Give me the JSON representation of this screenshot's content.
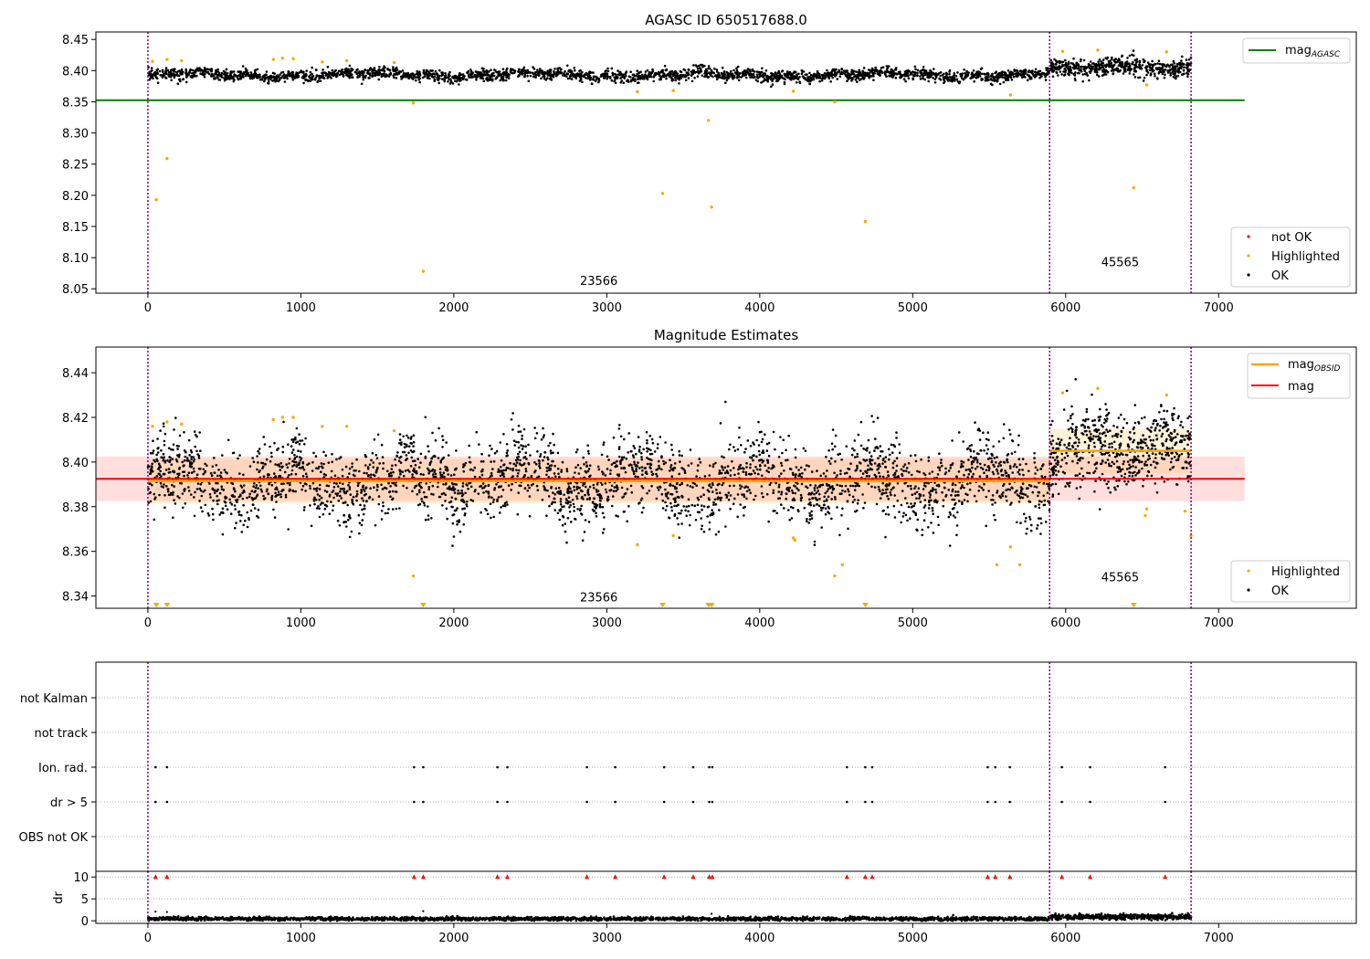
{
  "chart_data": [
    {
      "type": "scatter",
      "title": "AGASC ID 650517688.0",
      "xlim": [
        -340,
        7900
      ],
      "ylim": [
        8.043,
        8.462
      ],
      "x_ticks": [
        0,
        1000,
        2000,
        3000,
        4000,
        5000,
        6000,
        7000
      ],
      "y_ticks": [
        8.05,
        8.1,
        8.15,
        8.2,
        8.25,
        8.3,
        8.35,
        8.4,
        8.45
      ],
      "y_tick_labels": [
        "8.05",
        "8.10",
        "8.15",
        "8.20",
        "8.25",
        "8.30",
        "8.35",
        "8.40",
        "8.45"
      ],
      "obs_boundaries": [
        0,
        5895,
        6820
      ],
      "annotations": [
        {
          "text": "23566",
          "x": 2948,
          "y": 8.056
        },
        {
          "text": "45565",
          "x": 6356,
          "y": 8.086
        }
      ],
      "hlines": [
        {
          "name": "magAGASC",
          "y": 8.3525,
          "x_end": 7170,
          "color": "#008000"
        }
      ],
      "series": [
        {
          "name": "not OK",
          "color": "#ff0000",
          "points": []
        },
        {
          "name": "Highlighted",
          "color": "#ffa500",
          "points": [
            [
              55,
              8.193
            ],
            [
              125,
              8.259
            ],
            [
              1735,
              8.348
            ],
            [
              1800,
              8.078
            ],
            [
              3200,
              8.366
            ],
            [
              3365,
              8.203
            ],
            [
              3435,
              8.368
            ],
            [
              3665,
              8.32
            ],
            [
              3685,
              8.181
            ],
            [
              4220,
              8.367
            ],
            [
              4490,
              8.35
            ],
            [
              4690,
              8.158
            ],
            [
              6445,
              8.212
            ],
            [
              6530,
              8.377
            ],
            [
              5640,
              8.361
            ],
            [
              30,
              8.415
            ],
            [
              125,
              8.418
            ],
            [
              220,
              8.416
            ],
            [
              820,
              8.418
            ],
            [
              880,
              8.42
            ],
            [
              950,
              8.419
            ],
            [
              1140,
              8.414
            ],
            [
              1300,
              8.416
            ],
            [
              1610,
              8.413
            ],
            [
              5980,
              8.431
            ],
            [
              6210,
              8.433
            ],
            [
              6660,
              8.43
            ]
          ]
        },
        {
          "name": "OK",
          "color": "#000000",
          "segments": [
            {
              "x0": 0,
              "x1": 5895,
              "mean": 8.393,
              "sigma": 0.0045,
              "n": 2600
            },
            {
              "x0": 5895,
              "x1": 6820,
              "mean": 8.405,
              "sigma": 0.007,
              "n": 520
            }
          ]
        }
      ],
      "legend": [
        "magAGASC",
        "not OK",
        "Highlighted",
        "OK"
      ],
      "legend_labels": {
        "mag_main": "mag",
        "mag_sub": "AGASC",
        "not_ok": "not OK",
        "highlighted": "Highlighted",
        "ok": "OK"
      }
    },
    {
      "type": "scatter",
      "title": "Magnitude Estimates",
      "xlim": [
        -340,
        7900
      ],
      "ylim": [
        8.3345,
        8.4515
      ],
      "x_ticks": [
        0,
        1000,
        2000,
        3000,
        4000,
        5000,
        6000,
        7000
      ],
      "y_ticks": [
        8.34,
        8.36,
        8.38,
        8.4,
        8.42,
        8.44
      ],
      "y_tick_labels": [
        "8.34",
        "8.36",
        "8.38",
        "8.40",
        "8.42",
        "8.44"
      ],
      "obs_boundaries": [
        0,
        5895,
        6820
      ],
      "annotations": [
        {
          "text": "23566",
          "x": 2948,
          "y": 8.3375
        },
        {
          "text": "45565",
          "x": 6356,
          "y": 8.3465
        }
      ],
      "mag": {
        "y": 8.3925,
        "band": [
          8.3825,
          8.4025
        ],
        "x_end": 7170,
        "color": "#ff0000"
      },
      "mag_obsid": [
        {
          "x0": 0,
          "x1": 5895,
          "y": 8.3915,
          "band": [
            8.3815,
            8.4015
          ]
        },
        {
          "x0": 5895,
          "x1": 6820,
          "y": 8.405,
          "band": [
            8.395,
            8.415
          ]
        }
      ],
      "series": [
        {
          "name": "Highlighted",
          "color": "#ffa500",
          "points": [
            [
              30,
              8.416
            ],
            [
              125,
              8.418
            ],
            [
              220,
              8.417
            ],
            [
              820,
              8.419
            ],
            [
              880,
              8.42
            ],
            [
              950,
              8.42
            ],
            [
              1140,
              8.416
            ],
            [
              1300,
              8.416
            ],
            [
              1610,
              8.414
            ],
            [
              1735,
              8.349
            ],
            [
              3200,
              8.363
            ],
            [
              3435,
              8.367
            ],
            [
              4220,
              8.366
            ],
            [
              4230,
              8.365
            ],
            [
              4490,
              8.349
            ],
            [
              4540,
              8.354
            ],
            [
              5550,
              8.354
            ],
            [
              5640,
              8.362
            ],
            [
              5700,
              8.354
            ],
            [
              5980,
              8.431
            ],
            [
              6210,
              8.433
            ],
            [
              6530,
              8.379
            ],
            [
              6520,
              8.376
            ],
            [
              6660,
              8.43
            ],
            [
              6780,
              8.378
            ],
            [
              6820,
              8.367
            ]
          ]
        },
        {
          "name": "Highlighted (below range)",
          "color": "#ffa500",
          "markers": "triangle-down",
          "x": [
            55,
            125,
            1800,
            3365,
            3665,
            3685,
            4690,
            6445
          ]
        },
        {
          "name": "OK",
          "color": "#000000",
          "segments": [
            {
              "x0": 0,
              "x1": 5895,
              "mean": 8.3915,
              "sigma": 0.0085,
              "n": 3000
            },
            {
              "x0": 5895,
              "x1": 6820,
              "mean": 8.405,
              "sigma": 0.0085,
              "n": 600
            }
          ]
        }
      ],
      "legend": [
        "magOBSID",
        "mag",
        "Highlighted",
        "OK"
      ],
      "legend_labels": {
        "obsid_main": "mag",
        "obsid_sub": "OBSID",
        "mag": "mag",
        "highlighted": "Highlighted",
        "ok": "OK"
      }
    },
    {
      "type": "scatter",
      "title": "",
      "xlim": [
        -340,
        7900
      ],
      "categories": [
        "not Kalman",
        "not track",
        "Ion. rad.",
        "dr > 5",
        "OBS not OK"
      ],
      "obs_boundaries": [
        0,
        5895,
        6820
      ],
      "flag_x": [
        50,
        125,
        1740,
        1800,
        2285,
        2350,
        2870,
        3055,
        3375,
        3565,
        3670,
        3690,
        4570,
        4690,
        4735,
        5490,
        5540,
        5635,
        5975,
        6160,
        6650
      ],
      "flags": {
        "not Kalman": [],
        "not track": [],
        "Ion. rad.": "flag_x",
        "dr > 5": "flag_x",
        "OBS not OK": []
      }
    },
    {
      "type": "scatter",
      "ylabel": "dr",
      "xlim": [
        -340,
        7900
      ],
      "ylim": [
        -0.6,
        11.3
      ],
      "x_ticks": [
        0,
        1000,
        2000,
        3000,
        4000,
        5000,
        6000,
        7000
      ],
      "y_ticks": [
        0,
        5,
        10
      ],
      "y_tick_labels": [
        "0",
        "5",
        "10"
      ],
      "obs_boundaries": [
        0,
        5895,
        6820
      ],
      "red_markers_y": 10,
      "red_markers_x": [
        50,
        125,
        1740,
        1800,
        2285,
        2350,
        2870,
        3055,
        3375,
        3565,
        3670,
        3690,
        4570,
        4690,
        4735,
        5490,
        5540,
        5635,
        5975,
        6160,
        6650
      ],
      "series": [
        {
          "name": "dr",
          "color": "#000000",
          "segments": [
            {
              "x0": 0,
              "x1": 5895,
              "mean": 0.45,
              "sigma": 0.2,
              "n": 2500
            },
            {
              "x0": 5895,
              "x1": 6820,
              "mean": 0.9,
              "sigma": 0.3,
              "n": 500
            }
          ],
          "extra_points": [
            [
              50,
              2.1
            ],
            [
              125,
              2.0
            ],
            [
              1800,
              2.2
            ],
            [
              3685,
              1.6
            ]
          ]
        }
      ]
    }
  ]
}
